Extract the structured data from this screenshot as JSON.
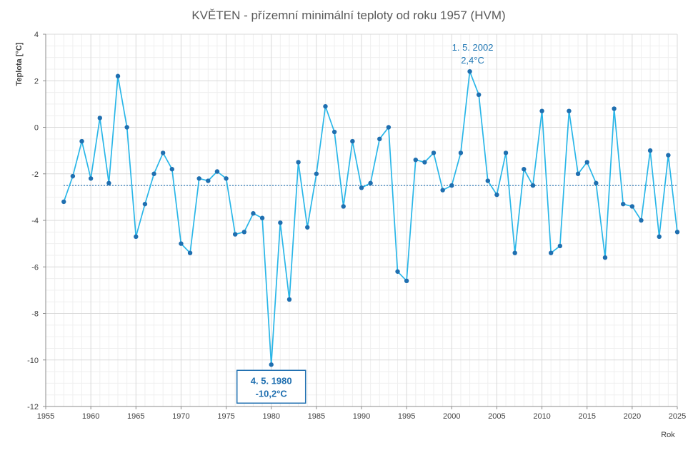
{
  "chart_data": {
    "type": "line",
    "title": "KVĚTEN - přízemní minimální teploty od roku 1957 (HVM)",
    "xlabel": "Rok",
    "ylabel": "Teplota [°C]",
    "xlim": [
      1955,
      2025
    ],
    "ylim": [
      -12,
      4
    ],
    "x_ticks": [
      1955,
      1960,
      1965,
      1970,
      1975,
      1980,
      1985,
      1990,
      1995,
      2000,
      2005,
      2010,
      2015,
      2020,
      2025
    ],
    "y_ticks": [
      4,
      2,
      0,
      -2,
      -4,
      -6,
      -8,
      -10,
      -12
    ],
    "grid": true,
    "colors": {
      "line": "#29b6e8",
      "marker": "#1f6fb0",
      "mean_line": "#1f6fb0",
      "grid_major": "#d9d9d9",
      "grid_minor": "#efefef"
    },
    "mean_line_value": -2.5,
    "series": [
      {
        "x": [
          1957,
          1958,
          1959,
          1960,
          1961,
          1962,
          1963,
          1964,
          1965,
          1966,
          1967,
          1968,
          1969,
          1970,
          1971,
          1972,
          1973,
          1974,
          1975,
          1976,
          1977,
          1978,
          1979,
          1980,
          1981,
          1982,
          1983,
          1984,
          1985,
          1986,
          1987,
          1988,
          1989,
          1990,
          1991,
          1992,
          1993,
          1994,
          1995,
          1996,
          1997,
          1998,
          1999,
          2000,
          2001,
          2002,
          2003,
          2004,
          2005,
          2006,
          2007,
          2008,
          2009,
          2010,
          2011,
          2012,
          2013,
          2014,
          2015,
          2016,
          2017,
          2018,
          2019,
          2020,
          2021,
          2022,
          2023,
          2024,
          2025
        ],
        "values": [
          -3.2,
          -2.1,
          -0.6,
          -2.2,
          0.4,
          -2.4,
          2.2,
          0.0,
          -4.7,
          -3.3,
          -2.0,
          -1.1,
          -1.8,
          -5.0,
          -5.4,
          -2.2,
          -2.3,
          -1.9,
          -2.2,
          -4.6,
          -4.5,
          -3.7,
          -3.9,
          -10.2,
          -4.1,
          -7.4,
          -1.5,
          -4.3,
          -2.0,
          0.9,
          -0.2,
          -3.4,
          -0.6,
          -2.6,
          -2.4,
          -0.5,
          0.0,
          -6.2,
          -6.6,
          -1.4,
          -1.5,
          -1.1,
          -2.7,
          -2.5,
          -1.1,
          2.4,
          1.4,
          -2.3,
          -2.9,
          -1.1,
          -5.4,
          -1.8,
          -2.5,
          0.7,
          -5.4,
          -5.1,
          0.7,
          -2.0,
          -1.5,
          -2.4,
          -5.6,
          0.8,
          -3.3,
          -3.4,
          -4.0,
          -1.0,
          -4.7,
          -1.2,
          -4.5
        ]
      }
    ],
    "annotations": {
      "max": {
        "line1": "1. 5. 2002",
        "line2": "2,4°C",
        "x": 2002,
        "y": 2.4
      },
      "min": {
        "line1": "4. 5. 1980",
        "line2": "-10,2°C",
        "x": 1980,
        "y": -10.2
      }
    }
  }
}
